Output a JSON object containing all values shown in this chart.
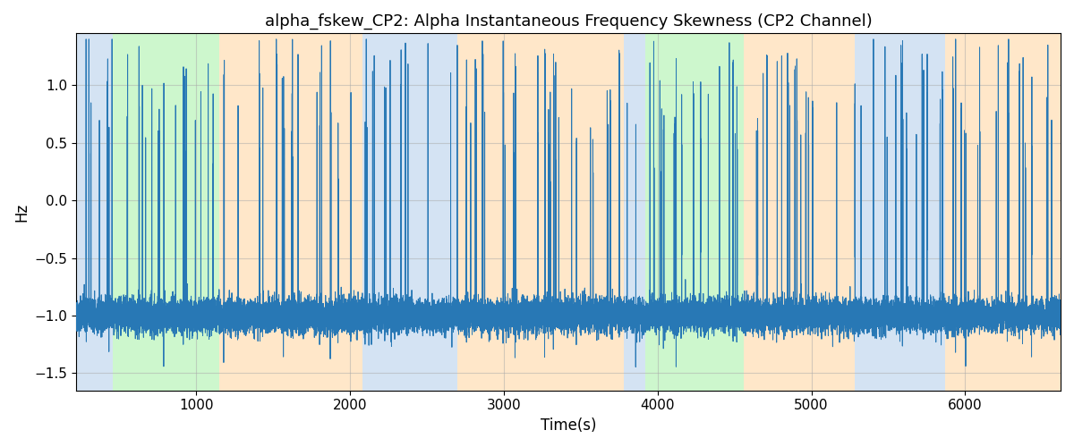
{
  "title": "alpha_fskew_CP2: Alpha Instantaneous Frequency Skewness (CP2 Channel)",
  "xlabel": "Time(s)",
  "ylabel": "Hz",
  "xlim": [
    220,
    6620
  ],
  "ylim": [
    -1.65,
    1.45
  ],
  "line_color": "#2878b5",
  "line_width": 0.7,
  "background_color": "#ffffff",
  "grid_color": "#aaaaaa",
  "grid_alpha": 0.5,
  "grid_linewidth": 0.8,
  "bands": [
    {
      "xmin": 220,
      "xmax": 460,
      "color": "#aac8e8",
      "alpha": 0.5
    },
    {
      "xmin": 460,
      "xmax": 1150,
      "color": "#90ee90",
      "alpha": 0.45
    },
    {
      "xmin": 1150,
      "xmax": 2080,
      "color": "#ffd59e",
      "alpha": 0.55
    },
    {
      "xmin": 2080,
      "xmax": 2700,
      "color": "#aac8e8",
      "alpha": 0.5
    },
    {
      "xmin": 2700,
      "xmax": 3780,
      "color": "#ffd59e",
      "alpha": 0.55
    },
    {
      "xmin": 3780,
      "xmax": 3920,
      "color": "#aac8e8",
      "alpha": 0.5
    },
    {
      "xmin": 3920,
      "xmax": 4560,
      "color": "#90ee90",
      "alpha": 0.45
    },
    {
      "xmin": 4560,
      "xmax": 5280,
      "color": "#ffd59e",
      "alpha": 0.55
    },
    {
      "xmin": 5280,
      "xmax": 5870,
      "color": "#aac8e8",
      "alpha": 0.5
    },
    {
      "xmin": 5870,
      "xmax": 6620,
      "color": "#ffd59e",
      "alpha": 0.55
    }
  ],
  "seed": 42,
  "t_start": 220,
  "t_end": 6620,
  "dt": 1.0
}
